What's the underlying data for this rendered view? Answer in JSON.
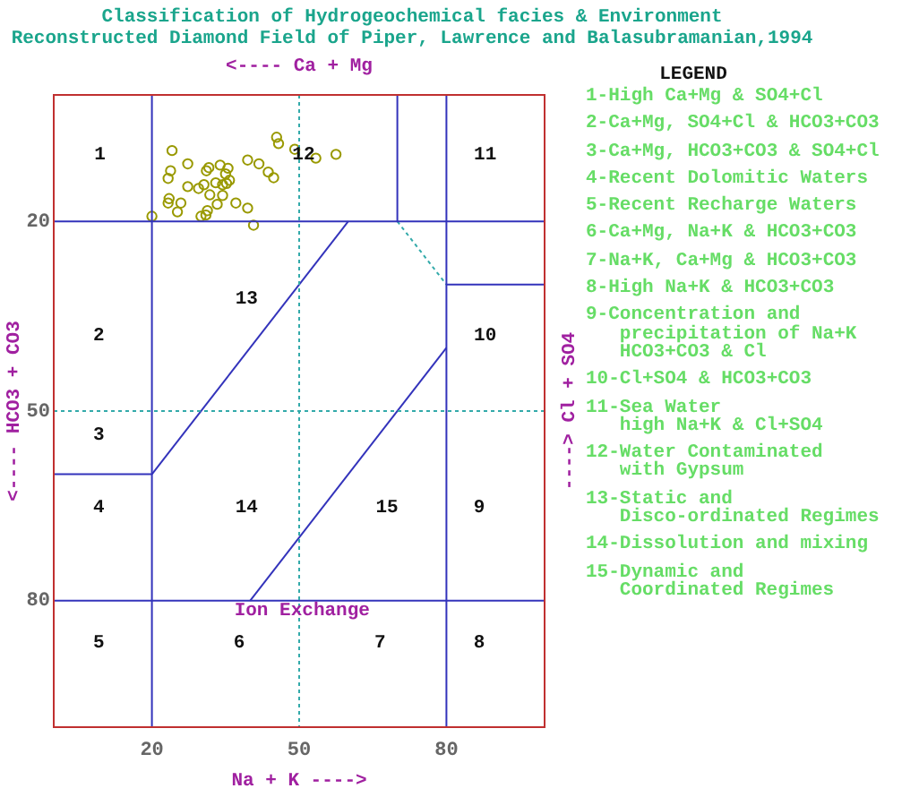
{
  "chart_data": {
    "type": "scatter",
    "title": "Classification of Hydrogeochemical facies & Environment",
    "subtitle": "Reconstructed Diamond Field of Piper, Lawrence and Balasubramanian,1994",
    "xlabel": "Na + K ---->",
    "x2label": "<---- Ca + Mg",
    "ylabel": "<---- HCO3 + CO3",
    "y2label": "----> Cl + SO4",
    "legend_title": "LEGEND",
    "xlim": [
      0,
      100
    ],
    "xticks": [
      20,
      50,
      80
    ],
    "ylim": [
      100,
      0
    ],
    "yticks": [
      20,
      50,
      80
    ],
    "grid": false,
    "legend": false,
    "marker": "circle",
    "series": [
      {
        "type": "line",
        "color": "#33aaaa",
        "line_style": "dotted",
        "marker": "none",
        "x": [
          50,
          50
        ],
        "values": [
          0,
          100
        ]
      },
      {
        "type": "line",
        "color": "#33aaaa",
        "line_style": "dotted",
        "marker": "none",
        "x": [
          0,
          100
        ],
        "values": [
          50,
          50
        ]
      },
      {
        "type": "line",
        "color": "#3333bb",
        "line_style": "solid",
        "marker": "none",
        "x": [
          20,
          20
        ],
        "values": [
          0,
          100
        ]
      },
      {
        "type": "line",
        "color": "#3333bb",
        "line_style": "solid",
        "marker": "none",
        "x": [
          80,
          80
        ],
        "values": [
          0,
          100
        ]
      },
      {
        "type": "line",
        "color": "#3333bb",
        "line_style": "solid",
        "marker": "none",
        "x": [
          0,
          100
        ],
        "values": [
          20,
          20
        ]
      },
      {
        "type": "line",
        "color": "#3333bb",
        "line_style": "solid",
        "marker": "none",
        "x": [
          0,
          100
        ],
        "values": [
          80,
          80
        ]
      },
      {
        "type": "scatter",
        "color": "#999900",
        "x": [
          24.1,
          45.4,
          45.8,
          49.1,
          53.4,
          57.5,
          27.3,
          23.8,
          23.3,
          31.1,
          31.6,
          33.9,
          35.5,
          39.5,
          41.8,
          43.7,
          44.8,
          35.0,
          35.8,
          35.2,
          33.0,
          34.4,
          30.6,
          29.5,
          27.3,
          31.8,
          34.4,
          33.3,
          37.1,
          39.5,
          23.5,
          23.3,
          25.9,
          25.2,
          31.3,
          31.0,
          30.0,
          20.0,
          40.7
        ],
        "values": [
          8.8,
          6.7,
          7.7,
          8.6,
          10.0,
          9.4,
          10.9,
          12.0,
          13.2,
          12.0,
          11.5,
          11.1,
          11.6,
          10.3,
          10.9,
          12.2,
          13.1,
          12.5,
          13.5,
          14.0,
          13.9,
          14.2,
          14.2,
          14.8,
          14.5,
          15.8,
          15.9,
          17.3,
          17.1,
          17.9,
          16.4,
          17.1,
          17.1,
          18.5,
          18.3,
          19.0,
          19.2,
          19.2,
          20.6
        ]
      },
      {
        "type": "line",
        "color": "#3333bb",
        "line_style": "solid",
        "marker": "none",
        "x": [
          70,
          70
        ],
        "values": [
          0,
          20
        ]
      },
      {
        "type": "line",
        "color": "#33aaaa",
        "line_style": "dotted",
        "marker": "none",
        "x": [
          70,
          80
        ],
        "values": [
          20,
          30
        ]
      },
      {
        "type": "line",
        "color": "#3333bb",
        "line_style": "solid",
        "marker": "none",
        "x": [
          80,
          100
        ],
        "values": [
          30,
          30
        ]
      },
      {
        "type": "line",
        "color": "#3333bb",
        "line_style": "solid",
        "marker": "none",
        "x": [
          0,
          20
        ],
        "values": [
          60,
          60
        ]
      },
      {
        "type": "line",
        "color": "#3333bb",
        "line_style": "solid",
        "marker": "none",
        "x": [
          20,
          60
        ],
        "values": [
          60,
          20
        ]
      },
      {
        "type": "line",
        "color": "#3333bb",
        "line_style": "solid",
        "marker": "none",
        "x": [
          40,
          80
        ],
        "values": [
          80,
          40
        ]
      }
    ],
    "annotations": [
      "1",
      "12",
      "11",
      "13",
      "2",
      "10",
      "3",
      "4",
      "14",
      "15",
      "9",
      "5",
      "6",
      "7",
      "8",
      "Ion Exchange",
      "1-High Ca+Mg & SO4+Cl",
      "2-Ca+Mg, SO4+Cl & HCO3+CO3",
      "3-Ca+Mg, HCO3+CO3 & SO4+Cl",
      "4-Recent Dolomitic Waters",
      "5-Recent Recharge Waters",
      "6-Ca+Mg, Na+K & HCO3+CO3",
      "7-Na+K, Ca+Mg & HCO3+CO3",
      "8-High Na+K & HCO3+CO3",
      "9-Concentration and\nprecipitation of Na+K\nHCO3+CO3 & Cl",
      "10-Cl+SO4 & HCO3+CO3",
      "11-Sea Water\nhigh Na+K & Cl+SO4",
      "12-Water Contaminated\nwith Gypsum",
      "13-Static and\nDisco-ordinated Regimes",
      "14-Dissolution and mixing",
      "15-Dynamic and\nCoordinated Regimes"
    ]
  }
}
